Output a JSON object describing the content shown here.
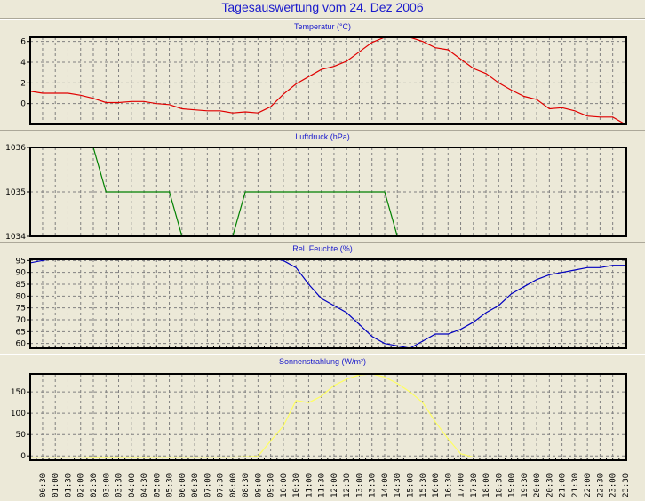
{
  "title": "Tagesauswertung vom 24. Dez 2006",
  "chart_data": [
    {
      "type": "line",
      "title": "Temperatur (°C)",
      "color": "#e00000",
      "ylim": [
        -2,
        6.4
      ],
      "yticks": [
        0,
        2,
        4,
        6
      ],
      "x_hours": [
        0,
        0.5,
        1,
        1.5,
        2,
        2.5,
        3,
        3.5,
        4,
        4.5,
        5,
        5.5,
        6,
        6.5,
        7,
        7.5,
        8,
        8.5,
        9,
        9.5,
        10,
        10.5,
        11,
        11.5,
        12,
        12.5,
        13,
        13.5,
        14,
        14.5,
        15,
        15.5,
        16,
        16.5,
        17,
        17.5,
        18,
        18.5,
        19,
        19.5,
        20,
        20.5,
        21,
        21.5,
        22,
        22.5,
        23,
        23.5
      ],
      "values": [
        1.2,
        1.0,
        1.0,
        1.0,
        0.8,
        0.5,
        0.1,
        0.1,
        0.2,
        0.2,
        0.0,
        -0.1,
        -0.5,
        -0.6,
        -0.7,
        -0.7,
        -0.9,
        -0.8,
        -0.9,
        -0.3,
        0.9,
        1.9,
        2.6,
        3.3,
        3.6,
        4.1,
        5.0,
        5.9,
        6.4,
        6.4,
        6.4,
        6.0,
        5.4,
        5.2,
        4.3,
        3.4,
        2.9,
        2.0,
        1.3,
        0.7,
        0.4,
        -0.5,
        -0.4,
        -0.7,
        -1.2,
        -1.3,
        -1.3,
        -2.0
      ]
    },
    {
      "type": "line",
      "title": "Luftdruck (hPa)",
      "color": "#008000",
      "ylim": [
        1034,
        1036
      ],
      "yticks": [
        1034,
        1035,
        1036
      ],
      "x_hours": [
        2.5,
        3,
        5.5,
        6.5,
        7.5,
        8.5,
        14,
        15
      ],
      "values": [
        1036,
        1035,
        1035,
        1033,
        1033,
        1035,
        1035,
        1033
      ]
    },
    {
      "type": "line",
      "title": "Rel. Feuchte (%)",
      "color": "#0000c0",
      "ylim": [
        58,
        95.5
      ],
      "yticks": [
        60,
        65,
        70,
        75,
        80,
        85,
        90,
        95
      ],
      "x_hours": [
        0,
        0.5,
        1,
        9.5,
        10,
        10.5,
        11,
        11.5,
        12,
        12.5,
        13,
        13.5,
        14,
        14.5,
        15,
        15.5,
        16,
        16.5,
        17,
        17.5,
        18,
        18.5,
        19,
        19.5,
        20,
        20.5,
        21,
        21.5,
        22,
        22.5,
        23,
        23.5
      ],
      "values": [
        94,
        95,
        96,
        96,
        95,
        92,
        85,
        79,
        76,
        73,
        68,
        63,
        60,
        59,
        58,
        61,
        64,
        64,
        66,
        69,
        73,
        76,
        81,
        84,
        87,
        89,
        90,
        91,
        92,
        92,
        93,
        93
      ]
    },
    {
      "type": "line",
      "title": "Sonnenstrahlung (W/m²)",
      "color": "#ffff60",
      "ylim": [
        -10,
        192
      ],
      "yticks": [
        0,
        50,
        100,
        150
      ],
      "x_hours": [
        0,
        2,
        2.5,
        8,
        9,
        9.5,
        10,
        10.5,
        11,
        11.5,
        12,
        12.5,
        13,
        13.5,
        14,
        14.5,
        15,
        15.5,
        16,
        16.5,
        17,
        17.5
      ],
      "values": [
        -3,
        -3,
        -4,
        -3,
        -1,
        35,
        70,
        130,
        125,
        140,
        165,
        180,
        190,
        192,
        185,
        170,
        150,
        125,
        80,
        40,
        5,
        -3
      ]
    }
  ],
  "x_tick_labels": [
    "00:30",
    "01:00",
    "01:30",
    "02:00",
    "02:30",
    "03:00",
    "03:30",
    "04:00",
    "04:30",
    "05:00",
    "05:30",
    "06:00",
    "06:30",
    "07:00",
    "07:30",
    "08:00",
    "08:30",
    "09:00",
    "09:30",
    "10:00",
    "10:30",
    "11:00",
    "11:30",
    "12:00",
    "12:30",
    "13:00",
    "13:30",
    "14:00",
    "14:30",
    "15:00",
    "15:30",
    "16:00",
    "16:30",
    "17:00",
    "17:30",
    "18:00",
    "18:30",
    "19:00",
    "19:30",
    "20:00",
    "20:30",
    "21:00",
    "21:30",
    "22:00",
    "22:30",
    "23:00",
    "23:30"
  ]
}
